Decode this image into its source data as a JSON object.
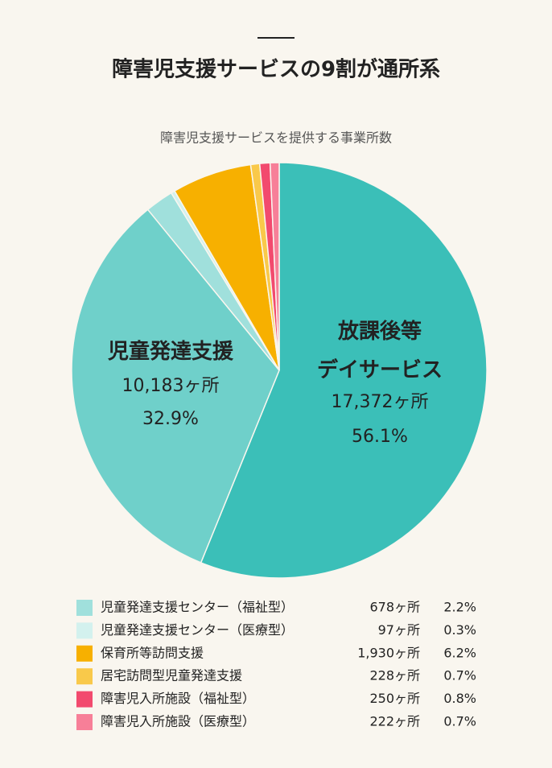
{
  "chart_data": {
    "type": "pie",
    "title": "障害児支援サービスの9割が通所系",
    "subtitle": "障害児支援サービスを提供する事業所数",
    "categories": [
      "放課後等\nデイサービス",
      "児童発達支援",
      "児童発達支援センター（福祉型）",
      "児童発達支援センター（医療型）",
      "保育所等訪問支援",
      "居宅訪問型児童発達支援",
      "障害児入所施設（福祉型）",
      "障害児入所施設（医療型）"
    ],
    "values": [
      56.1,
      32.9,
      2.2,
      0.3,
      6.2,
      0.7,
      0.8,
      0.7
    ],
    "value_labels": [
      "56.1%",
      "32.9%",
      "2.2%",
      "0.3%",
      "6.2%",
      "0.7%",
      "0.8%",
      "0.7%"
    ],
    "count_labels": [
      "17,372ヶ所",
      "10,183ヶ所",
      "678ヶ所",
      "97ヶ所",
      "1,930ヶ所",
      "228ヶ所",
      "250ヶ所",
      "222ヶ所"
    ],
    "colors": [
      "#3bbfb8",
      "#6fd0ca",
      "#a0e0dc",
      "#d3f1ee",
      "#f7b000",
      "#f9c94a",
      "#f24a6e",
      "#f77f98"
    ]
  }
}
